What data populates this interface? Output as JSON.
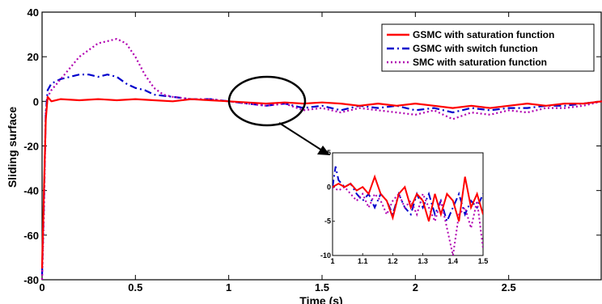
{
  "chart_data": {
    "type": "line",
    "xlabel": "Time (s)",
    "ylabel": "Sliding surface",
    "xlim": [
      0,
      3
    ],
    "ylim": [
      -80,
      40
    ],
    "xticks": [
      "0",
      "0.5",
      "1",
      "1.5",
      "2",
      "2.5"
    ],
    "yticks": [
      "40",
      "20",
      "0",
      "-20",
      "-40",
      "-60",
      "-80"
    ],
    "grid": false,
    "legend_position": "top-right",
    "series": [
      {
        "name": "GSMC with saturation function",
        "color": "#ff0000",
        "style": "solid",
        "x": [
          0,
          0.01,
          0.02,
          0.03,
          0.04,
          0.05,
          0.1,
          0.2,
          0.3,
          0.4,
          0.5,
          0.6,
          0.7,
          0.8,
          0.9,
          1.0,
          1.1,
          1.2,
          1.3,
          1.4,
          1.5,
          1.6,
          1.7,
          1.8,
          1.9,
          2.0,
          2.1,
          2.2,
          2.3,
          2.4,
          2.5,
          2.6,
          2.7,
          2.8,
          2.9,
          3.0
        ],
        "y": [
          -75,
          -40,
          -8,
          2,
          1,
          0,
          1,
          0.5,
          1,
          0.5,
          1,
          0.5,
          0,
          1,
          0.5,
          0,
          -0.5,
          -1,
          -0.5,
          -1,
          -0.5,
          -1,
          -2,
          -1,
          -2,
          -1,
          -2,
          -3,
          -2,
          -3,
          -2,
          -1,
          -2,
          -1,
          -1,
          0
        ]
      },
      {
        "name": "GSMC with switch function",
        "color": "#0000cc",
        "style": "dash-dot",
        "x": [
          0,
          0.01,
          0.02,
          0.03,
          0.05,
          0.1,
          0.15,
          0.2,
          0.25,
          0.3,
          0.35,
          0.4,
          0.45,
          0.5,
          0.55,
          0.6,
          0.7,
          0.8,
          0.9,
          1.0,
          1.1,
          1.2,
          1.3,
          1.4,
          1.5,
          1.6,
          1.7,
          1.8,
          1.9,
          2.0,
          2.1,
          2.2,
          2.3,
          2.4,
          2.5,
          2.6,
          2.7,
          2.8,
          2.9,
          3.0
        ],
        "y": [
          -78,
          -45,
          -5,
          5,
          8,
          10,
          11,
          12,
          12,
          11,
          12,
          11,
          8,
          6,
          5,
          3,
          2,
          1,
          1,
          0,
          -1,
          -2,
          -1,
          -3,
          -2,
          -4,
          -2,
          -3,
          -2,
          -4,
          -3,
          -5,
          -3,
          -4,
          -3,
          -3,
          -2,
          -2,
          -1,
          0
        ]
      },
      {
        "name": "SMC with saturation function",
        "color": "#b000b0",
        "style": "dotted",
        "x": [
          0,
          0.01,
          0.02,
          0.03,
          0.05,
          0.1,
          0.15,
          0.2,
          0.25,
          0.3,
          0.35,
          0.4,
          0.45,
          0.5,
          0.55,
          0.6,
          0.65,
          0.7,
          0.8,
          0.9,
          1.0,
          1.1,
          1.2,
          1.3,
          1.4,
          1.5,
          1.6,
          1.7,
          1.8,
          1.9,
          2.0,
          2.1,
          2.2,
          2.3,
          2.4,
          2.5,
          2.6,
          2.7,
          2.8,
          2.9,
          3.0
        ],
        "y": [
          -80,
          -50,
          -5,
          2,
          5,
          10,
          15,
          20,
          23,
          26,
          27,
          28,
          26,
          20,
          12,
          6,
          3,
          2,
          1,
          1,
          0,
          -1,
          -2,
          -1,
          -4,
          -3,
          -5,
          -3,
          -4,
          -5,
          -6,
          -4,
          -8,
          -5,
          -6,
          -4,
          -5,
          -3,
          -3,
          -2,
          0
        ]
      }
    ],
    "inset": {
      "xlim": [
        1,
        1.5
      ],
      "ylim": [
        -10,
        5
      ],
      "xticks": [
        "1",
        "1.1",
        "1.2",
        "1.3",
        "1.4",
        "1.5"
      ],
      "yticks": [
        "5",
        "0",
        "-5",
        "-10"
      ],
      "series": [
        {
          "name": "GSMC with saturation function",
          "x": [
            1.0,
            1.02,
            1.04,
            1.06,
            1.08,
            1.1,
            1.12,
            1.14,
            1.16,
            1.18,
            1.2,
            1.22,
            1.24,
            1.26,
            1.28,
            1.3,
            1.32,
            1.34,
            1.36,
            1.38,
            1.4,
            1.42,
            1.44,
            1.46,
            1.48,
            1.5
          ],
          "y": [
            0,
            0.5,
            0,
            0.5,
            -0.5,
            0,
            -1,
            1.5,
            -1,
            -2,
            -4.5,
            -1,
            0,
            -3,
            -1,
            -2,
            -5,
            -1,
            -4,
            -1,
            -2,
            -5,
            1.5,
            -3,
            -1,
            -4
          ]
        },
        {
          "name": "GSMC with switch function",
          "x": [
            1.0,
            1.01,
            1.02,
            1.04,
            1.06,
            1.08,
            1.1,
            1.12,
            1.14,
            1.16,
            1.18,
            1.2,
            1.22,
            1.24,
            1.26,
            1.28,
            1.3,
            1.32,
            1.34,
            1.36,
            1.38,
            1.4,
            1.42,
            1.44,
            1.46,
            1.48,
            1.5
          ],
          "y": [
            0,
            3,
            1,
            0,
            0.5,
            -1,
            -2,
            -1,
            -3,
            -1,
            -2,
            -4,
            -1,
            -3,
            -4,
            -1,
            -3,
            -1,
            -4,
            -2,
            -5,
            -3,
            -1,
            -4,
            -2,
            -3,
            -1
          ]
        },
        {
          "name": "SMC with saturation function",
          "x": [
            1.0,
            1.02,
            1.04,
            1.06,
            1.08,
            1.1,
            1.12,
            1.14,
            1.16,
            1.18,
            1.2,
            1.22,
            1.24,
            1.26,
            1.28,
            1.3,
            1.32,
            1.34,
            1.36,
            1.38,
            1.4,
            1.42,
            1.44,
            1.46,
            1.48,
            1.5
          ],
          "y": [
            0,
            -0.5,
            0,
            -1,
            -2,
            -1,
            -3,
            -1,
            -2,
            -4,
            -2,
            -1,
            -3,
            -2,
            -4,
            -1,
            -3,
            -5,
            -2,
            -6,
            -10,
            -4,
            -3,
            -6,
            -2,
            -9
          ]
        }
      ]
    }
  }
}
